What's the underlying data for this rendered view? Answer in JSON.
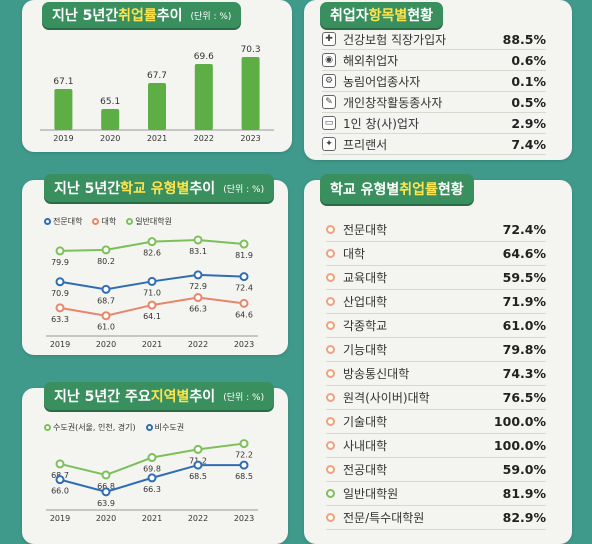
{
  "chart_data": [
    {
      "id": "employment-rate",
      "type": "bar",
      "title_pre": "지난 5년간 ",
      "title_hl": "취업률",
      "title_post": " 추이",
      "unit": "(단위 : %)",
      "categories": [
        "2019",
        "2020",
        "2021",
        "2022",
        "2023"
      ],
      "values": [
        67.1,
        65.1,
        67.7,
        69.6,
        70.3
      ],
      "ylim": [
        63,
        71
      ],
      "color": "#5cae45"
    },
    {
      "id": "school-type-trend",
      "type": "line",
      "title_pre": "지난 5년간 ",
      "title_hl": "학교 유형별",
      "title_post": " 추이",
      "unit": "(단위 : %)",
      "categories": [
        "2019",
        "2020",
        "2021",
        "2022",
        "2023"
      ],
      "ylim": [
        58,
        86
      ],
      "series": [
        {
          "name": "전문대학",
          "values": [
            70.9,
            68.7,
            71.0,
            72.9,
            72.4
          ],
          "color": "#2f6db3"
        },
        {
          "name": "대학",
          "values": [
            63.3,
            61.0,
            64.1,
            66.3,
            64.6
          ],
          "color": "#e8866a"
        },
        {
          "name": "일반대학원",
          "values": [
            79.9,
            80.2,
            82.6,
            83.1,
            81.9
          ],
          "color": "#7cc05a"
        }
      ]
    },
    {
      "id": "region-trend",
      "type": "line",
      "title_pre": "지난 5년간 주요 ",
      "title_hl": "지역별",
      "title_post": " 추이",
      "unit": "(단위 : %)",
      "categories": [
        "2019",
        "2020",
        "2021",
        "2022",
        "2023"
      ],
      "ylim": [
        62.5,
        73.5
      ],
      "series": [
        {
          "name": "수도권(서울, 인천, 경기)",
          "values": [
            68.7,
            66.8,
            69.8,
            71.2,
            72.2
          ],
          "color": "#7cc05a"
        },
        {
          "name": "비수도권",
          "values": [
            66.0,
            63.9,
            66.3,
            68.5,
            68.5
          ],
          "color": "#2f6db3"
        }
      ]
    },
    {
      "id": "item-status",
      "type": "table",
      "title_pre": "취업자 ",
      "title_hl": "항목별",
      "title_post": " 현황",
      "rows": [
        {
          "label": "건강보험 직장가입자",
          "value": "88.5%",
          "icon": "medical-icon"
        },
        {
          "label": "해외취업자",
          "value": "0.6%",
          "icon": "globe-icon"
        },
        {
          "label": "농림어업종사자",
          "value": "0.1%",
          "icon": "tractor-icon"
        },
        {
          "label": "개인창작활동종사자",
          "value": "0.5%",
          "icon": "palette-icon"
        },
        {
          "label": "1인 창(사)업자",
          "value": "2.9%",
          "icon": "computer-icon"
        },
        {
          "label": "프리랜서",
          "value": "7.4%",
          "icon": "freelancer-icon"
        }
      ]
    },
    {
      "id": "school-type-status",
      "type": "table",
      "title_pre": "학교 유형별 ",
      "title_hl": "취업률",
      "title_post": " 현황",
      "rows": [
        {
          "label": "전문대학",
          "value": "72.4%"
        },
        {
          "label": "대학",
          "value": "64.6%"
        },
        {
          "label": "교육대학",
          "value": "59.5%"
        },
        {
          "label": "산업대학",
          "value": "71.9%"
        },
        {
          "label": "각종학교",
          "value": "61.0%"
        },
        {
          "label": "기능대학",
          "value": "79.8%"
        },
        {
          "label": "방송통신대학",
          "value": "74.3%"
        },
        {
          "label": "원격(사이버)대학",
          "value": "76.5%"
        },
        {
          "label": "기술대학",
          "value": "100.0%"
        },
        {
          "label": "사내대학",
          "value": "100.0%"
        },
        {
          "label": "전공대학",
          "value": "59.0%"
        },
        {
          "label": "일반대학원",
          "value": "81.9%"
        },
        {
          "label": "전문/특수대학원",
          "value": "82.9%"
        }
      ]
    }
  ]
}
